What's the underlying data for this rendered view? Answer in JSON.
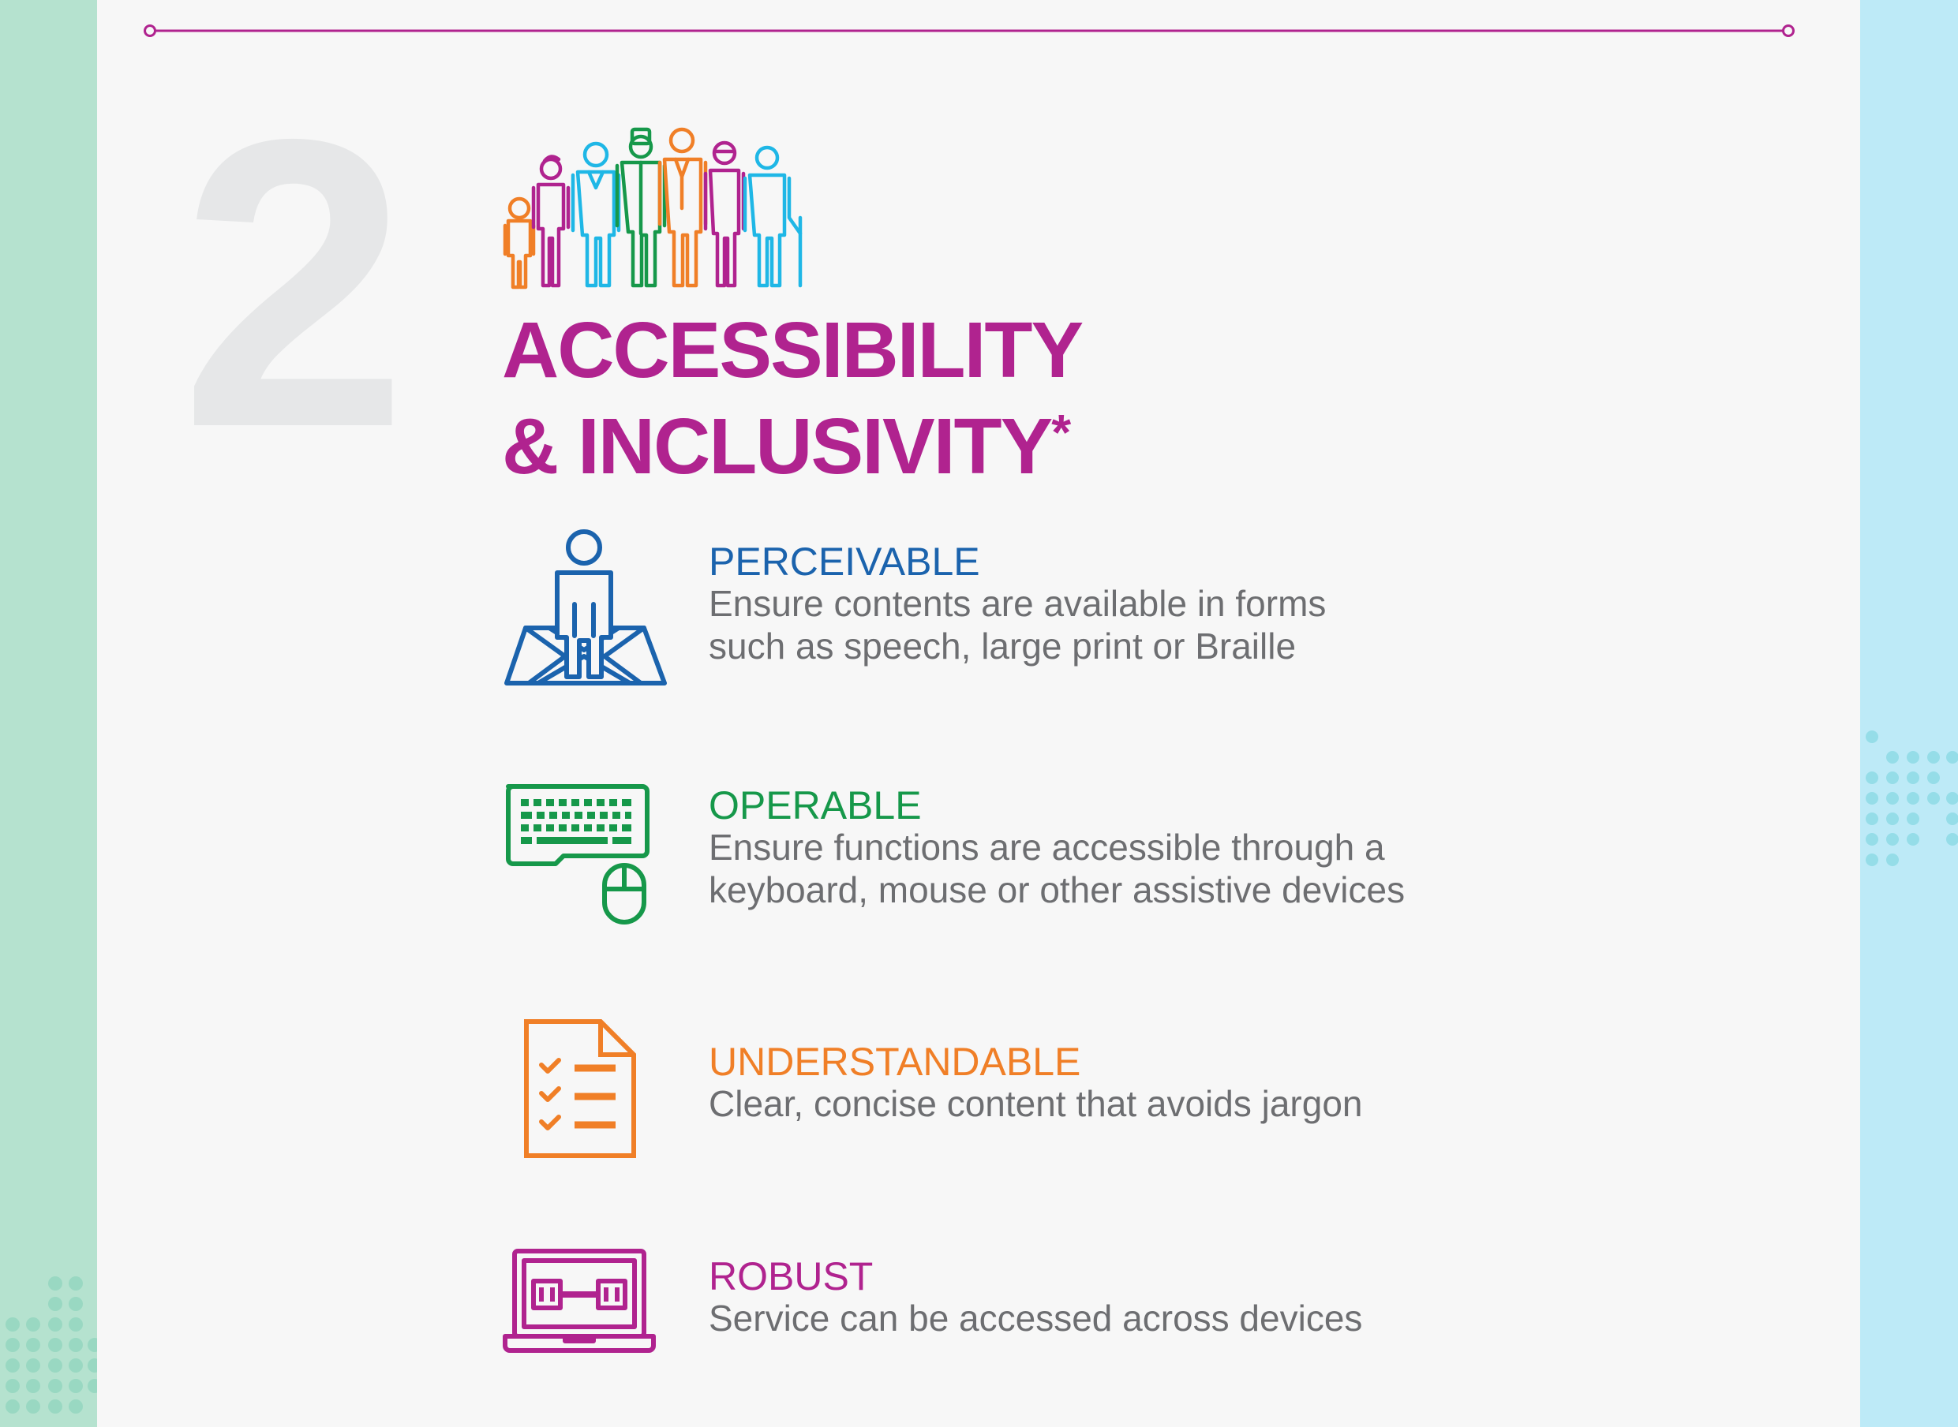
{
  "section_number": "2",
  "title": {
    "line1": "ACCESSIBILITY",
    "line2": "& INCLUSIVITY",
    "asterisk": "*"
  },
  "colors": {
    "magenta": "#b0238f",
    "blue": "#1b63ad",
    "green": "#16984a",
    "orange": "#f07f27",
    "cyan": "#1fb7e6",
    "grey_text": "#6d6e71",
    "number_grey": "#e6e7e8"
  },
  "principles": [
    {
      "heading": "PERCEIVABLE",
      "desc_line1": "Ensure contents are available in forms",
      "desc_line2": "such as speech, large print or Braille",
      "icon": "person-on-map-icon",
      "color": "#1b63ad"
    },
    {
      "heading": "OPERABLE",
      "desc_line1": "Ensure functions are accessible through a",
      "desc_line2": "keyboard, mouse or other assistive devices",
      "icon": "keyboard-mouse-icon",
      "color": "#16984a"
    },
    {
      "heading": "UNDERSTANDABLE",
      "desc_line1": "Clear, concise content that avoids jargon",
      "desc_line2": "",
      "icon": "checklist-document-icon",
      "color": "#f07f27"
    },
    {
      "heading": "ROBUST",
      "desc_line1": "Service can be accessed across devices",
      "desc_line2": "",
      "icon": "laptop-strength-icon",
      "color": "#b0238f"
    }
  ]
}
